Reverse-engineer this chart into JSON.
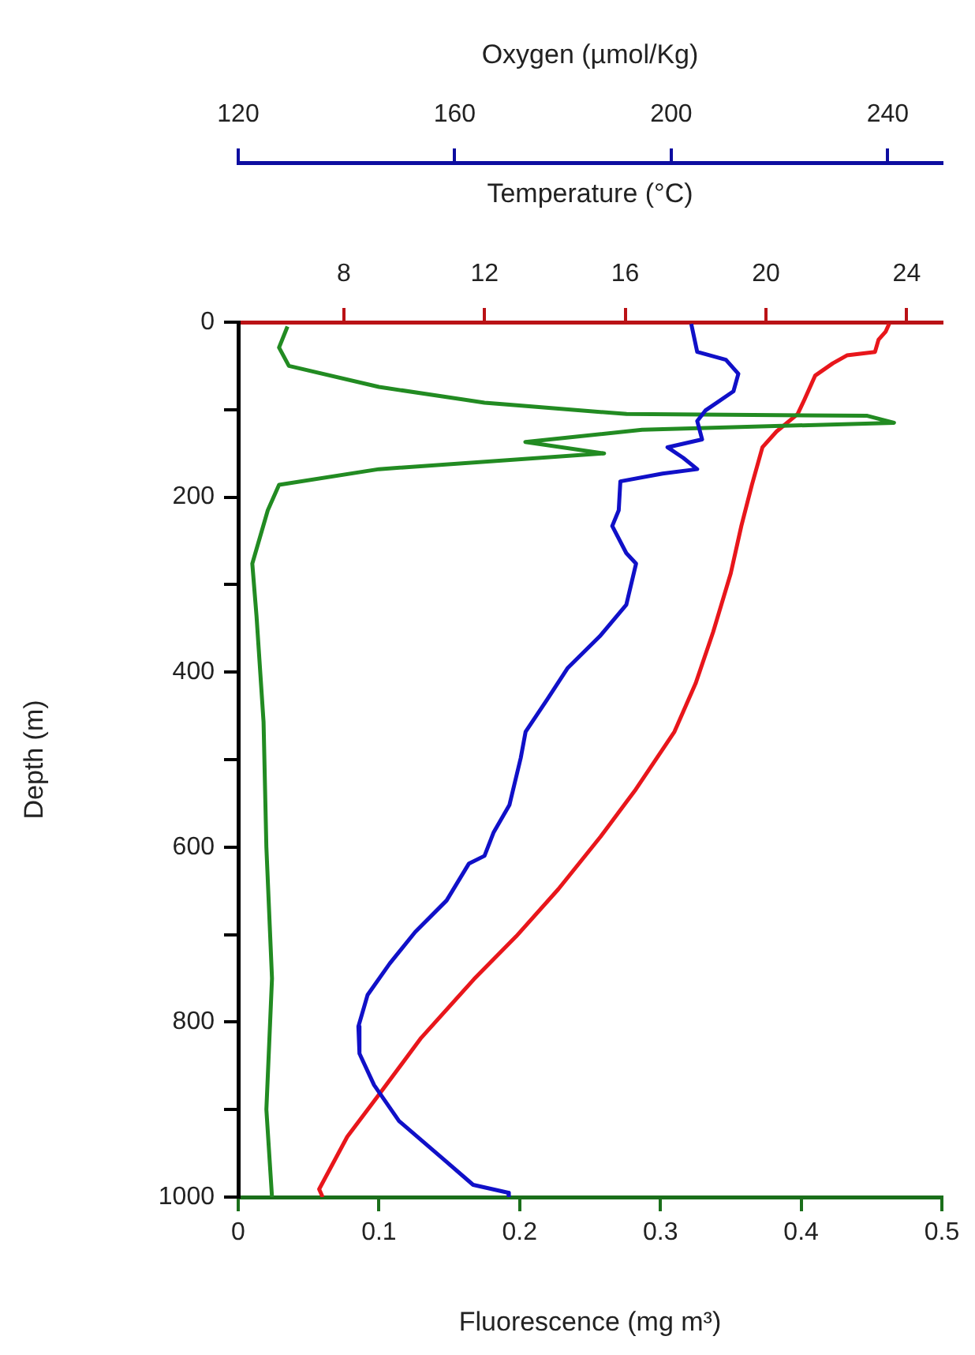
{
  "chart_data": [
    {
      "type": "line",
      "xlabel": "Fluorescence (mg m³)",
      "x2label": "Temperature (°C)",
      "ylabel": "Depth (m)",
      "xlim": [
        0,
        0.5
      ],
      "xticks": [
        0,
        0.1,
        0.2,
        0.3,
        0.4,
        0.5
      ],
      "x2lim": [
        5,
        25
      ],
      "x2ticks": [
        8,
        12,
        16,
        20,
        24
      ],
      "ylim": [
        1000,
        0
      ],
      "yticks": [
        0,
        {
          "value": 100,
          "label": null
        },
        200,
        {
          "value": 300,
          "label": null
        },
        400,
        {
          "value": 500,
          "label": null
        },
        600,
        {
          "value": 700,
          "label": null
        },
        800,
        {
          "value": 900,
          "label": null
        },
        1000
      ],
      "grid": false,
      "legend": false,
      "marker": "none",
      "line_style": "solid",
      "series": [
        {
          "color": "#228b22",
          "x": [
            0.035,
            0.029,
            0.036,
            0.1,
            0.175,
            0.276,
            0.447,
            0.466,
            0.287,
            0.204,
            0.26,
            0.1,
            0.029,
            0.021,
            0.01,
            0.013,
            0.018,
            0.02,
            0.024,
            0.02,
            0.024
          ],
          "values": [
            5,
            29,
            50,
            74,
            92,
            105,
            107,
            115,
            123,
            137,
            150,
            168,
            186,
            215,
            276,
            336,
            457,
            600,
            750,
            900,
            1000
          ]
        },
        {
          "color": "#e8161b",
          "axis": "x2",
          "x": [
            23.5,
            23.4,
            23.2,
            23.1,
            22.3,
            21.9,
            21.4,
            21.1,
            20.9,
            20.3,
            19.9,
            19.6,
            19.3,
            19.0,
            18.5,
            18.0,
            17.4,
            16.9,
            16.3,
            15.3,
            14.1,
            12.9,
            11.7,
            10.2,
            9.0,
            8.1,
            7.3,
            7.4
          ],
          "values": [
            2,
            11,
            20,
            34,
            38,
            47,
            61,
            88,
            105,
            125,
            143,
            186,
            233,
            287,
            354,
            413,
            468,
            498,
            534,
            588,
            648,
            702,
            751,
            818,
            883,
            931,
            991,
            1000
          ]
        }
      ]
    },
    {
      "type": "line",
      "xlabel": "Oxygen (µmol/Kg)",
      "xlim": [
        120,
        250
      ],
      "xticks": [
        120,
        160,
        200,
        240
      ],
      "ylim": [
        1000,
        0
      ],
      "tick_labels": "x",
      "grid": false,
      "legend": false,
      "marker": "none",
      "line_style": "solid",
      "series": [
        {
          "color": "#1010c8",
          "x": [
            203.7,
            204.8,
            210.1,
            212.4,
            211.5,
            206.3,
            204.8,
            205.7,
            199.3,
            202.2,
            204.8,
            198.4,
            190.6,
            190.3,
            189.1,
            191.7,
            193.5,
            191.7,
            186.8,
            180.9,
            177.1,
            173.1,
            172.2,
            170.1,
            167.2,
            165.5,
            162.6,
            158.5,
            152.7,
            148,
            143.9,
            142.2,
            142.4,
            145.1,
            149.7,
            157.6,
            163.4,
            169.9,
            170
          ],
          "values": [
            2,
            34,
            43,
            59,
            79,
            101,
            113,
            134,
            143,
            155,
            168,
            173,
            182,
            215,
            233,
            264,
            276,
            323,
            359,
            395,
            431,
            468,
            498,
            552,
            583,
            610,
            619,
            661,
            697,
            733,
            769,
            805,
            836,
            872,
            913,
            955,
            986,
            995,
            1000
          ]
        }
      ]
    }
  ]
}
